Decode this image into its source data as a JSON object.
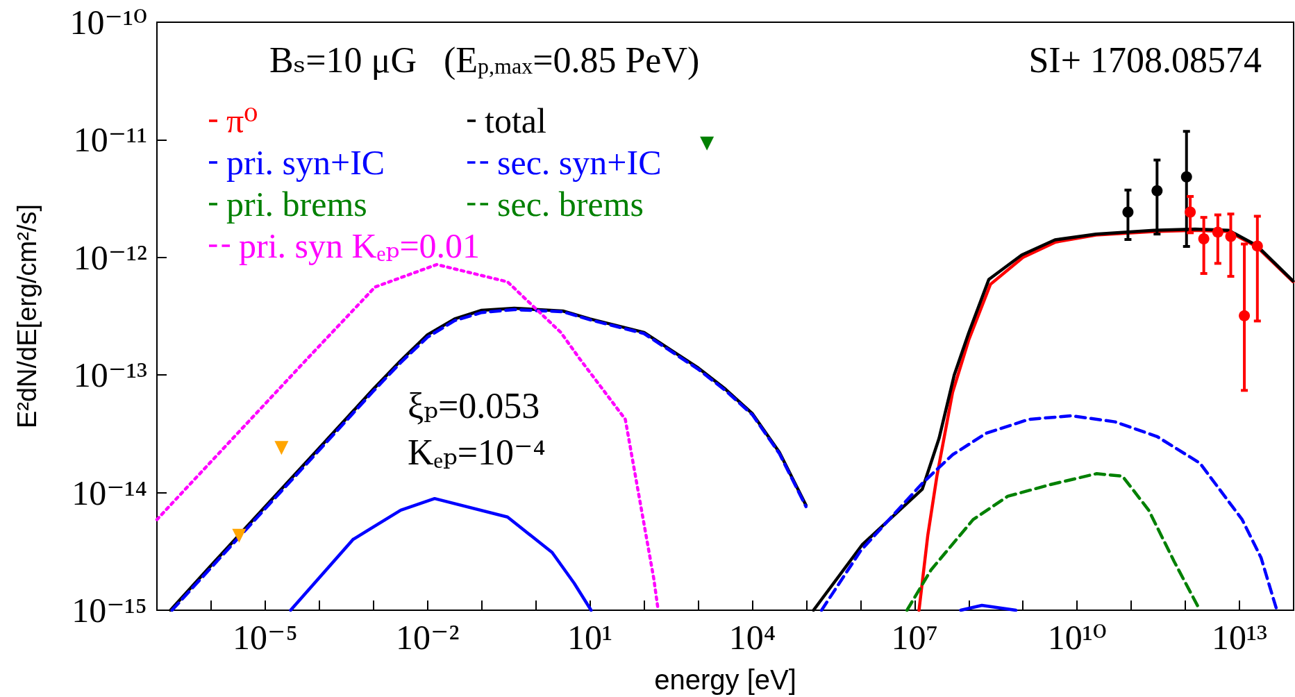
{
  "chart_data": {
    "type": "line",
    "xlabel": "energy [eV]",
    "ylabel": "E²dN/dE[erg/cm²/s]",
    "annotations": [
      "Bₛ=10 μG   (E$_{p,max}$=0.85 PeV)",
      "SI+ 1708.08574",
      "ξₚ=0.053",
      "Kₑₚ=10⁻⁴"
    ],
    "log": "xy",
    "grid": false,
    "legend": "top left",
    "xlim": [
      1e-07,
      100000000000000.0
    ],
    "ylim": [
      1e-15,
      1e-10
    ],
    "xticks": [
      {
        "value": 1e-07,
        "label": null
      },
      {
        "value": 1e-06,
        "label": null
      },
      {
        "value": 1e-05,
        "label": "10⁻⁵"
      },
      {
        "value": 0.0001,
        "label": null
      },
      {
        "value": 0.001,
        "label": null
      },
      {
        "value": 0.01,
        "label": "10⁻²"
      },
      {
        "value": 0.1,
        "label": null
      },
      {
        "value": 1,
        "label": null
      },
      {
        "value": 10,
        "label": "10¹"
      },
      {
        "value": 100,
        "label": null
      },
      {
        "value": 1000,
        "label": null
      },
      {
        "value": 10000.0,
        "label": "10⁴"
      },
      {
        "value": 100000.0,
        "label": null
      },
      {
        "value": 1000000.0,
        "label": null
      },
      {
        "value": 10000000.0,
        "label": "10⁷"
      },
      {
        "value": 100000000.0,
        "label": null
      },
      {
        "value": 1000000000.0,
        "label": null
      },
      {
        "value": 10000000000.0,
        "label": "10¹⁰"
      },
      {
        "value": 100000000000.0,
        "label": null
      },
      {
        "value": 1000000000000.0,
        "label": null
      },
      {
        "value": 10000000000000.0,
        "label": "10¹³"
      },
      {
        "value": 100000000000000.0,
        "label": null
      }
    ],
    "yticks": [
      {
        "value": 1e-15,
        "label": "10⁻¹⁵"
      },
      {
        "value": 1e-14,
        "label": "10⁻¹⁴"
      },
      {
        "value": 1e-13,
        "label": "10⁻¹³"
      },
      {
        "value": 1e-12,
        "label": "10⁻¹²"
      },
      {
        "value": 1e-11,
        "label": "10⁻¹¹"
      },
      {
        "value": 1e-10,
        "label": "10⁻¹⁰"
      }
    ],
    "series": [
      {
        "name": "π⁰",
        "color": "#ff0000",
        "line_style": "solid",
        "marker": "none",
        "x": [
          12000000.0,
          17400000.0,
          25700000.0,
          50000000.0,
          100000000.0,
          250000000.0,
          1000000000.0,
          4000000000.0,
          22400000000.0,
          263000000000.0,
          1510000000000.0,
          6300000000000.0,
          21000000000000.0,
          98000000000000.0
        ],
        "values": [
          1e-15,
          4.3e-15,
          1.38e-14,
          7.1e-14,
          2e-13,
          5.9e-13,
          1e-12,
          1.35e-12,
          1.55e-12,
          1.66e-12,
          1.7e-12,
          1.66e-12,
          1.23e-12,
          6.2e-13
        ]
      },
      {
        "name": "total",
        "color": "#000000",
        "line_style": "solid",
        "marker": "none",
        "x": [
          1.78e-07,
          1e-06,
          1e-05,
          0.0001,
          0.001,
          0.00316,
          0.01,
          0.0316,
          0.1,
          0.4,
          3.16,
          10,
          100,
          1000,
          3162,
          10000.0,
          31600.0,
          98000.0,
          120000.0,
          135000.0,
          1070000.0,
          13800000.0,
          28200000.0,
          53700000.0,
          100000000.0,
          234000000.0,
          950000000.0,
          3900000000.0,
          22400000000.0,
          263000000000.0,
          1510000000000.0,
          6300000000000.0,
          21000000000000.0,
          98000000000000.0
        ],
        "values": [
          1e-15,
          2.4e-15,
          7.6e-15,
          2.4e-14,
          7.6e-14,
          1.32e-13,
          2.2e-13,
          3e-13,
          3.55e-13,
          3.7e-13,
          3.5e-13,
          3e-13,
          2.3e-13,
          1.15e-13,
          7.6e-14,
          4.7e-14,
          2.2e-14,
          7.8e-15,
          null,
          1e-15,
          3.6e-15,
          1.07e-14,
          2.9e-14,
          1e-13,
          2.3e-13,
          6.5e-13,
          1.05e-12,
          1.41e-12,
          1.58e-12,
          1.7e-12,
          1.74e-12,
          1.7e-12,
          1.26e-12,
          6.3e-13
        ]
      },
      {
        "name": "pri. syn+IC",
        "color": "#0000ff",
        "line_style": "solid",
        "marker": "none",
        "x": [
          2.95e-05,
          0.00042,
          0.0032,
          0.0135,
          0.3,
          2.0,
          5.1,
          10.5,
          1000000.0,
          70800000.0,
          174000000.0,
          740000000.0
        ],
        "values": [
          1e-15,
          4e-15,
          7.1e-15,
          8.9e-15,
          6.2e-15,
          3.1e-15,
          1.7e-15,
          1e-15,
          null,
          1e-15,
          1.1e-15,
          1e-15
        ]
      },
      {
        "name": "sec. syn+IC",
        "color": "#0000ff",
        "line_style": "dashed",
        "marker": "none",
        "x": [
          1.9e-07,
          1e-06,
          1e-05,
          0.0001,
          0.001,
          0.00316,
          0.01,
          0.0316,
          0.1,
          0.4,
          3.16,
          10,
          100,
          1000,
          3162,
          10000.0,
          31600.0,
          98000.0,
          120000.0,
          190000.0,
          1000000.0,
          13800000.0,
          50000000.0,
          210000000.0,
          1290000000.0,
          7900000000.0,
          50000000000.0,
          300000000000.0,
          1860000000000.0,
          11200000000000.0,
          25000000000000.0,
          49000000000000.0
        ],
        "values": [
          1e-15,
          2.3e-15,
          7.3e-15,
          2.3e-14,
          7.3e-14,
          1.27e-13,
          2.1e-13,
          2.9e-13,
          3.4e-13,
          3.6e-13,
          3.45e-13,
          2.95e-13,
          2.25e-13,
          1.12e-13,
          7.4e-14,
          4.6e-14,
          2.15e-14,
          7.6e-15,
          null,
          1e-15,
          3.2e-15,
          1.2e-14,
          2.1e-14,
          3.2e-14,
          4.2e-14,
          4.5e-14,
          4e-14,
          3e-14,
          1.78e-14,
          5.9e-15,
          2.8e-15,
          1e-15
        ]
      },
      {
        "name": "pri. brems",
        "color": "#008000",
        "line_style": "solid",
        "marker": "none"
      },
      {
        "name": "sec. brems",
        "color": "#008000",
        "line_style": "dashed",
        "marker": "none",
        "x": [
          7200000.0,
          20000000.0,
          120000000.0,
          520000000.0,
          3200000000.0,
          23000000000.0,
          69000000000.0,
          210000000000.0,
          620000000000.0,
          1860000000000.0
        ],
        "values": [
          1e-15,
          2.2e-15,
          5.9e-15,
          9.3e-15,
          1.17e-14,
          1.45e-14,
          1.38e-14,
          7.1e-15,
          2.6e-15,
          1e-15
        ]
      },
      {
        "name": "pri. syn Kₑₚ=0.01",
        "color": "#ff00ff",
        "line_style": "dotted",
        "marker": "none",
        "x": [
          1e-07,
          6.3e-05,
          0.00107,
          0.0148,
          0.3,
          2.9,
          6.2,
          45,
          151,
          182
        ],
        "values": [
          5.9e-15,
          1.41e-13,
          5.6e-13,
          8.7e-13,
          6.2e-13,
          2.3e-13,
          1.41e-13,
          4.2e-14,
          1.86e-15,
          1e-15
        ]
      },
      {
        "type": "scatter",
        "color": "#000000",
        "marker": "circle",
        "x": [
          87000000000.0,
          300000000000.0,
          1050000000000.0
        ],
        "values": [
          2.43e-12,
          3.69e-12,
          4.84e-12
        ],
        "errors": [
          [
            1.42e-12,
            3.74e-12
          ],
          [
            1.58e-12,
            6.73e-12
          ],
          [
            1.24e-12,
            1.18e-11
          ]
        ]
      },
      {
        "type": "scatter",
        "color": "#ff0000",
        "marker": "circle",
        "x": [
          1230000000000.0,
          2190000000000.0,
          3980000000000.0,
          6900000000000.0,
          12300000000000.0,
          21400000000000.0
        ],
        "values": [
          2.43e-12,
          1.44e-12,
          1.64e-12,
          1.51e-12,
          3.19e-13,
          1.25e-12
        ],
        "errors": [
          [
            1.62e-12,
            3.3e-12
          ],
          [
            7.3e-13,
            2.19e-12
          ],
          [
            8.9e-13,
            2.3e-12
          ],
          [
            6.9e-13,
            2.34e-12
          ],
          [
            7.4e-14,
            1.3e-12
          ],
          [
            2.88e-13,
            2.24e-12
          ]
        ]
      },
      {
        "type": "scatter",
        "color": "#ffa500",
        "marker": "triangle",
        "x": [
          3.3e-06,
          2e-05
        ],
        "values": [
          4.3e-15,
          2.4e-14
        ]
      },
      {
        "type": "scatter",
        "color": "#008000",
        "marker": "triangle",
        "x": [
          1450
        ],
        "values": [
          9.3e-12
        ]
      }
    ]
  }
}
